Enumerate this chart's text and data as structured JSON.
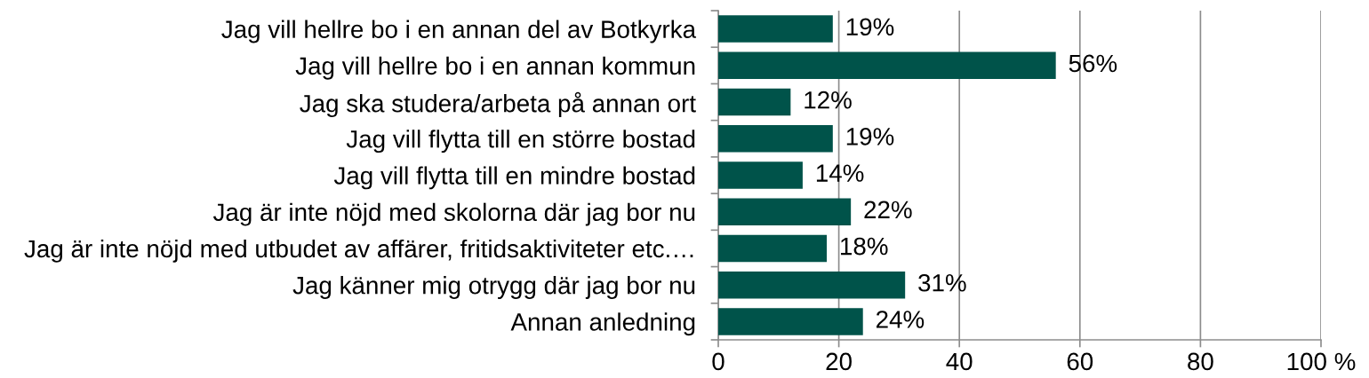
{
  "chart_data": {
    "type": "bar",
    "orientation": "horizontal",
    "categories": [
      "Jag vill hellre bo i en annan del av Botkyrka",
      "Jag vill hellre bo i en annan kommun",
      "Jag ska studera/arbeta på annan ort",
      "Jag vill flytta till en större bostad",
      "Jag vill flytta till en mindre bostad",
      "Jag är inte nöjd med skolorna där jag bor nu",
      "Jag är inte nöjd med utbudet av affärer, fritidsaktiviteter etc.…",
      "Jag känner mig otrygg där jag bor nu",
      "Annan anledning"
    ],
    "values": [
      19,
      56,
      12,
      19,
      14,
      22,
      18,
      31,
      24
    ],
    "value_labels": [
      "19%",
      "56%",
      "12%",
      "19%",
      "14%",
      "22%",
      "18%",
      "31%",
      "24%"
    ],
    "color": "#00534a",
    "xlim": [
      0,
      100
    ],
    "xticks": [
      0,
      20,
      40,
      60,
      80,
      {
        "value": 100,
        "label": "100 %"
      }
    ],
    "grid": "x",
    "legend": false
  }
}
